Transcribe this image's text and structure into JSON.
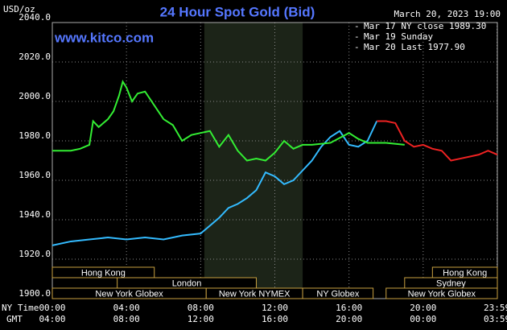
{
  "chart_data": {
    "type": "line",
    "title": "24 Hour Spot Gold (Bid)",
    "date": "March 20, 2023 19:00",
    "site": "www.kitco.com",
    "ylabel": "USD/oz",
    "xlabel": "NY Time",
    "xlabel2": "GMT",
    "xlim": [
      0,
      24
    ],
    "ylim": [
      1900,
      2040
    ],
    "yticks": [
      {
        "value": 1900,
        "label": "1900.0"
      },
      {
        "value": 1920,
        "label": "1920.0"
      },
      {
        "value": 1940,
        "label": "1940.0"
      },
      {
        "value": 1960,
        "label": "1960.0"
      },
      {
        "value": 1980,
        "label": "1980.0"
      },
      {
        "value": 2000,
        "label": "2000.0"
      },
      {
        "value": 2020,
        "label": "2020.0"
      },
      {
        "value": 2040,
        "label": "2040.0"
      }
    ],
    "xticks": [
      {
        "value": 0,
        "label": "00:00"
      },
      {
        "value": 4,
        "label": "04:00"
      },
      {
        "value": 8,
        "label": "08:00"
      },
      {
        "value": 12,
        "label": "12:00"
      },
      {
        "value": 16,
        "label": "16:00"
      },
      {
        "value": 20,
        "label": "20:00"
      },
      {
        "value": 23.98,
        "label": "23:59"
      }
    ],
    "xticks_gmt": [
      "04:00",
      "08:00",
      "12:00",
      "16:00",
      "20:00",
      "00:00",
      "03:59"
    ],
    "grid": true,
    "shade": [
      8.2,
      13.5
    ],
    "series": [
      {
        "name": "Mar 17 NY close 1989.30",
        "color": "#33bbff",
        "x": [
          0,
          1,
          2,
          3,
          4,
          5,
          6,
          7,
          8,
          8.5,
          9,
          9.5,
          10,
          10.5,
          11,
          11.5,
          12,
          12.5,
          13,
          13.5,
          14,
          14.5,
          15,
          15.5,
          16,
          16.5,
          17,
          17.5
        ],
        "values": [
          1927,
          1929,
          1930,
          1931,
          1930,
          1931,
          1930,
          1932,
          1933,
          1937,
          1941,
          1946,
          1948,
          1951,
          1955,
          1964,
          1962,
          1958,
          1960,
          1965,
          1970,
          1977,
          1982,
          1985,
          1978,
          1977,
          1980,
          1990
        ]
      },
      {
        "name": "Mar 19 Sunday",
        "color": "#ee2222",
        "x": [
          17.5,
          18,
          18.5,
          19,
          19.5,
          20,
          20.5,
          21,
          21.5,
          22,
          22.5,
          23,
          23.5,
          24
        ],
        "values": [
          1990,
          1990,
          1989,
          1980,
          1977,
          1978,
          1976,
          1975,
          1970,
          1971,
          1972,
          1973,
          1975,
          1973
        ]
      },
      {
        "name": "Mar 20 Last 1977.90",
        "color": "#33ee33",
        "x": [
          0,
          1,
          1.5,
          2,
          2.2,
          2.5,
          3,
          3.3,
          3.6,
          3.8,
          4,
          4.3,
          4.6,
          5,
          5.5,
          6,
          6.5,
          7,
          7.5,
          8,
          8.5,
          9,
          9.5,
          10,
          10.5,
          11,
          11.5,
          12,
          12.5,
          13,
          13.5,
          14,
          15,
          16,
          16.5,
          17,
          18,
          19
        ],
        "values": [
          1975,
          1975,
          1976,
          1978,
          1990,
          1987,
          1991,
          1995,
          2003,
          2010,
          2007,
          2000,
          2004,
          2005,
          1998,
          1991,
          1988,
          1980,
          1983,
          1984,
          1985,
          1977,
          1983,
          1975,
          1970,
          1971,
          1970,
          1974,
          1980,
          1976,
          1978,
          1978,
          1979,
          1984,
          1981,
          1979,
          1979,
          1978
        ]
      }
    ],
    "sessions": [
      {
        "label": "Hong Kong",
        "start": 0,
        "end": 5.5,
        "row": 0
      },
      {
        "label": "Hong Kong",
        "start": 20.5,
        "end": 24,
        "row": 0
      },
      {
        "label": "London",
        "start": 3.5,
        "end": 11,
        "row": 1
      },
      {
        "label": "Sydney",
        "start": 19,
        "end": 24,
        "row": 1
      },
      {
        "label": "New York Globex",
        "start": 0,
        "end": 8.3,
        "row": 2
      },
      {
        "label": "New York NYMEX",
        "start": 8.3,
        "end": 13.5,
        "row": 2
      },
      {
        "label": "NY Globex",
        "start": 13.5,
        "end": 17.3,
        "row": 2
      },
      {
        "label": "New York Globex",
        "start": 18,
        "end": 24,
        "row": 2
      }
    ]
  }
}
